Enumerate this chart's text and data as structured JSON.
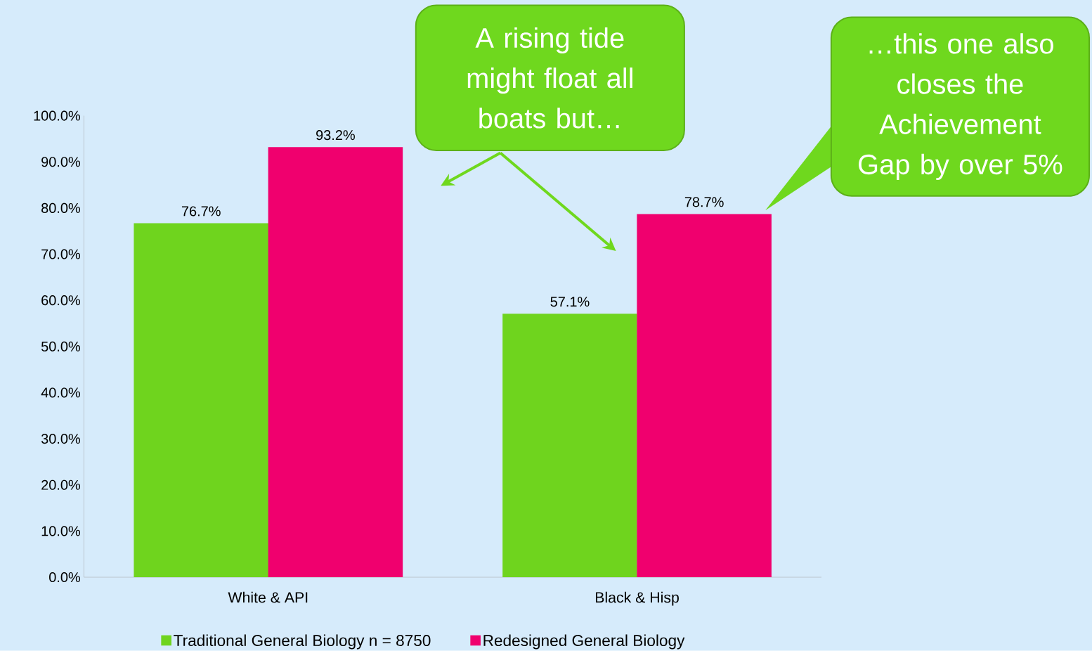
{
  "chart_data": {
    "type": "bar",
    "categories": [
      "White & API",
      "Black & Hisp"
    ],
    "series": [
      {
        "name": "Traditional General Biology n = 8750",
        "color": "#6fd41e",
        "values": [
          76.7,
          57.1
        ],
        "value_labels": [
          "76.7%",
          "57.1%"
        ]
      },
      {
        "name": "Redesigned General Biology",
        "color": "#f0006e",
        "values": [
          93.2,
          78.7
        ],
        "value_labels": [
          "93.2%",
          "78.7%"
        ]
      }
    ],
    "ylim": [
      0,
      100
    ],
    "yticks": [
      {
        "value": 0,
        "label": "0.0%"
      },
      {
        "value": 10,
        "label": "10.0%"
      },
      {
        "value": 20,
        "label": "20.0%"
      },
      {
        "value": 30,
        "label": "30.0%"
      },
      {
        "value": 40,
        "label": "40.0%"
      },
      {
        "value": 50,
        "label": "50.0%"
      },
      {
        "value": 60,
        "label": "60.0%"
      },
      {
        "value": 70,
        "label": "70.0%"
      },
      {
        "value": 80,
        "label": "80.0%"
      },
      {
        "value": 90,
        "label": "90.0%"
      },
      {
        "value": 100,
        "label": "100.0%"
      }
    ],
    "legend": "bottom",
    "annotations": [
      "A rising tide might float all boats but…",
      "…this one also closes the Achievement Gap by over 5%"
    ]
  }
}
